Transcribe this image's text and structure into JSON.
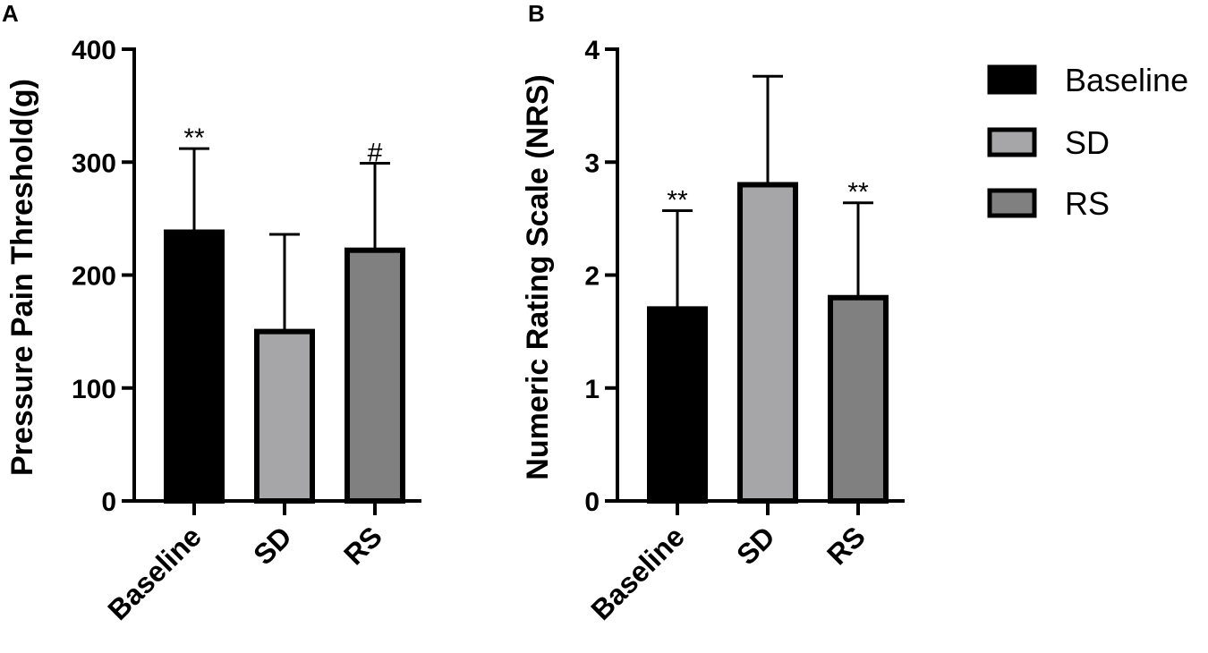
{
  "chart_data": [
    {
      "panel": "A",
      "type": "bar",
      "categories": [
        "Baseline",
        "SD",
        "RS"
      ],
      "values": [
        238,
        150,
        222
      ],
      "error_upper": [
        312,
        236,
        299
      ],
      "annotations": [
        "**",
        "",
        "#"
      ],
      "ylabel": "Pressure Pain Threshold(g)",
      "ylim": [
        0,
        400
      ],
      "yticks": [
        "0",
        "100",
        "200",
        "300",
        "400"
      ],
      "grid": false
    },
    {
      "panel": "B",
      "type": "bar",
      "categories": [
        "Baseline",
        "SD",
        "RS"
      ],
      "values": [
        1.7,
        2.8,
        1.8
      ],
      "error_upper": [
        2.57,
        3.76,
        2.64
      ],
      "annotations": [
        "**",
        "",
        "**"
      ],
      "ylabel": "Numeric Rating Scale (NRS)",
      "ylim": [
        0,
        4
      ],
      "yticks": [
        "0",
        "1",
        "2",
        "3",
        "4"
      ],
      "grid": false
    }
  ],
  "legend": {
    "placement": "right",
    "entries": [
      {
        "label": "Baseline",
        "color": "#000000"
      },
      {
        "label": "SD",
        "color": "#a6a6a8"
      },
      {
        "label": "RS",
        "color": "#808080"
      }
    ]
  },
  "colors": {
    "Baseline": "#000000",
    "SD": "#a6a6a8",
    "RS": "#808080",
    "outline": "#000000"
  }
}
